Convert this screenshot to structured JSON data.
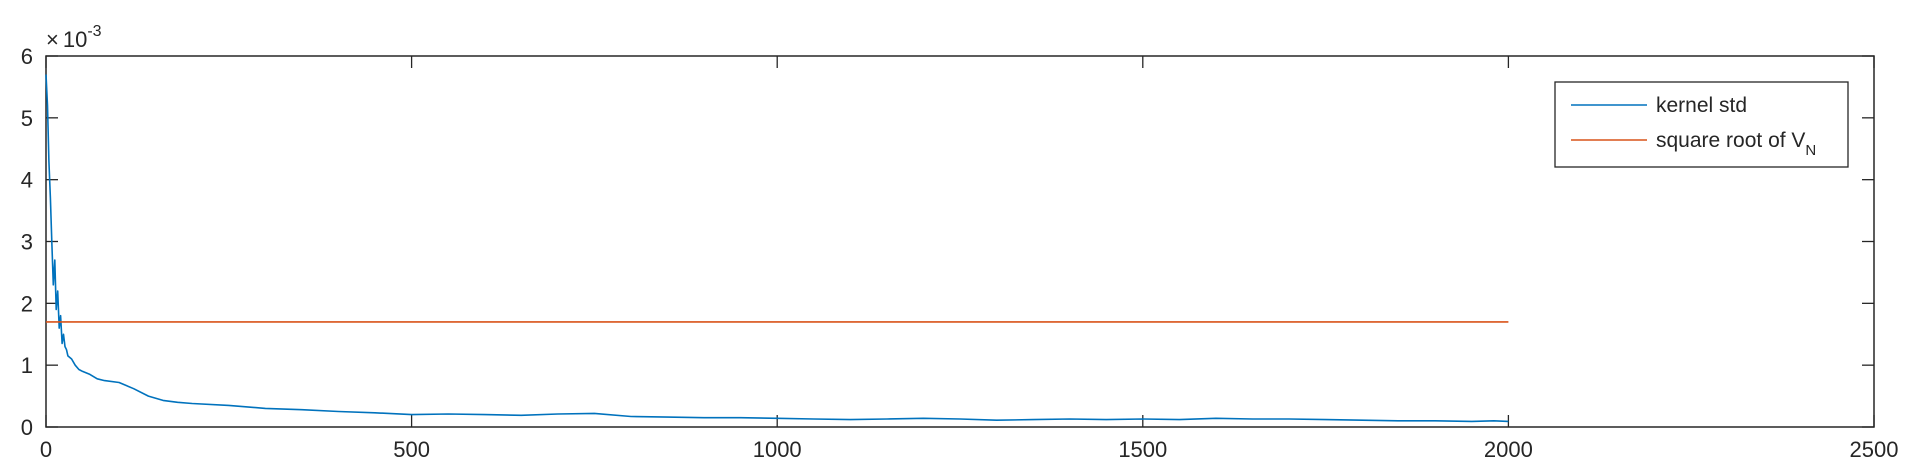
{
  "chart_data": {
    "type": "line",
    "title": "",
    "xlabel": "",
    "ylabel": "",
    "xlim": [
      0,
      2500
    ],
    "ylim": [
      0,
      6
    ],
    "y_exponent_label": {
      "times": "×",
      "base": "10",
      "exponent": "-3"
    },
    "x_ticks": [
      {
        "value": 0,
        "label": "0"
      },
      {
        "value": 500,
        "label": "500"
      },
      {
        "value": 1000,
        "label": "1000"
      },
      {
        "value": 1500,
        "label": "1500"
      },
      {
        "value": 2000,
        "label": "2000"
      },
      {
        "value": 2500,
        "label": "2500"
      }
    ],
    "y_ticks": [
      {
        "value": 0,
        "label": "0"
      },
      {
        "value": 1,
        "label": "1"
      },
      {
        "value": 2,
        "label": "2"
      },
      {
        "value": 3,
        "label": "3"
      },
      {
        "value": 4,
        "label": "4"
      },
      {
        "value": 5,
        "label": "5"
      },
      {
        "value": 6,
        "label": "6"
      }
    ],
    "grid": false,
    "legend_position": "top-right",
    "series": [
      {
        "name": "kernel std",
        "color": "#0072bd",
        "x": [
          0,
          2,
          4,
          6,
          8,
          10,
          12,
          14,
          16,
          18,
          20,
          22,
          24,
          26,
          28,
          30,
          35,
          40,
          45,
          50,
          60,
          70,
          80,
          100,
          120,
          140,
          160,
          180,
          200,
          250,
          300,
          350,
          400,
          450,
          500,
          550,
          600,
          650,
          700,
          750,
          800,
          850,
          900,
          950,
          1000,
          1050,
          1100,
          1150,
          1200,
          1250,
          1300,
          1350,
          1400,
          1450,
          1500,
          1550,
          1600,
          1650,
          1700,
          1750,
          1800,
          1850,
          1900,
          1950,
          1980,
          2000
        ],
        "y": [
          5.7,
          5.2,
          4.3,
          3.7,
          3.0,
          2.3,
          2.7,
          1.9,
          2.2,
          1.6,
          1.8,
          1.35,
          1.5,
          1.3,
          1.25,
          1.15,
          1.1,
          1.0,
          0.93,
          0.9,
          0.85,
          0.78,
          0.75,
          0.72,
          0.62,
          0.5,
          0.43,
          0.4,
          0.38,
          0.35,
          0.3,
          0.28,
          0.25,
          0.23,
          0.2,
          0.21,
          0.2,
          0.19,
          0.21,
          0.22,
          0.17,
          0.16,
          0.15,
          0.15,
          0.14,
          0.13,
          0.12,
          0.13,
          0.14,
          0.13,
          0.11,
          0.12,
          0.13,
          0.12,
          0.13,
          0.12,
          0.14,
          0.13,
          0.13,
          0.12,
          0.11,
          0.1,
          0.1,
          0.09,
          0.1,
          0.09
        ]
      },
      {
        "name": "square root of V",
        "name_subscript": "N",
        "color": "#d95319",
        "x": [
          0,
          2000
        ],
        "y": [
          1.7,
          1.7
        ]
      }
    ]
  }
}
